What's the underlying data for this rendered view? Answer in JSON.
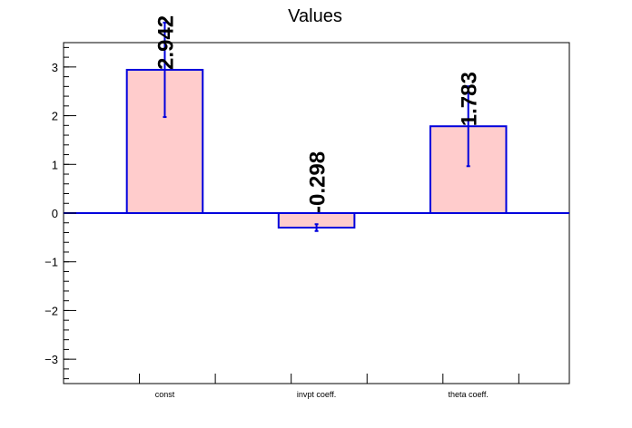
{
  "chart_data": {
    "type": "bar",
    "title": "Values",
    "xlabel": "",
    "ylabel": "",
    "categories": [
      "const",
      "invpt coeff.",
      "theta coeff."
    ],
    "values": [
      2.942,
      -0.298,
      1.783
    ],
    "value_labels": [
      "2.942",
      "-0.298",
      "1.783"
    ],
    "errors": [
      0.97,
      0.07,
      0.82
    ],
    "ylim": [
      -3.5,
      3.5
    ],
    "yticks": [
      -3,
      -2,
      -1,
      0,
      1,
      2,
      3
    ],
    "ytick_labels": [
      "−3",
      "−2",
      "−1",
      "0",
      "1",
      "2",
      "3"
    ],
    "grid": false,
    "colors": {
      "bar_fill": "#ffcccc",
      "bar_edge": "#0000dd",
      "error_bar": "#0000dd",
      "zero_line": "#0000dd",
      "axis": "#000000"
    }
  }
}
